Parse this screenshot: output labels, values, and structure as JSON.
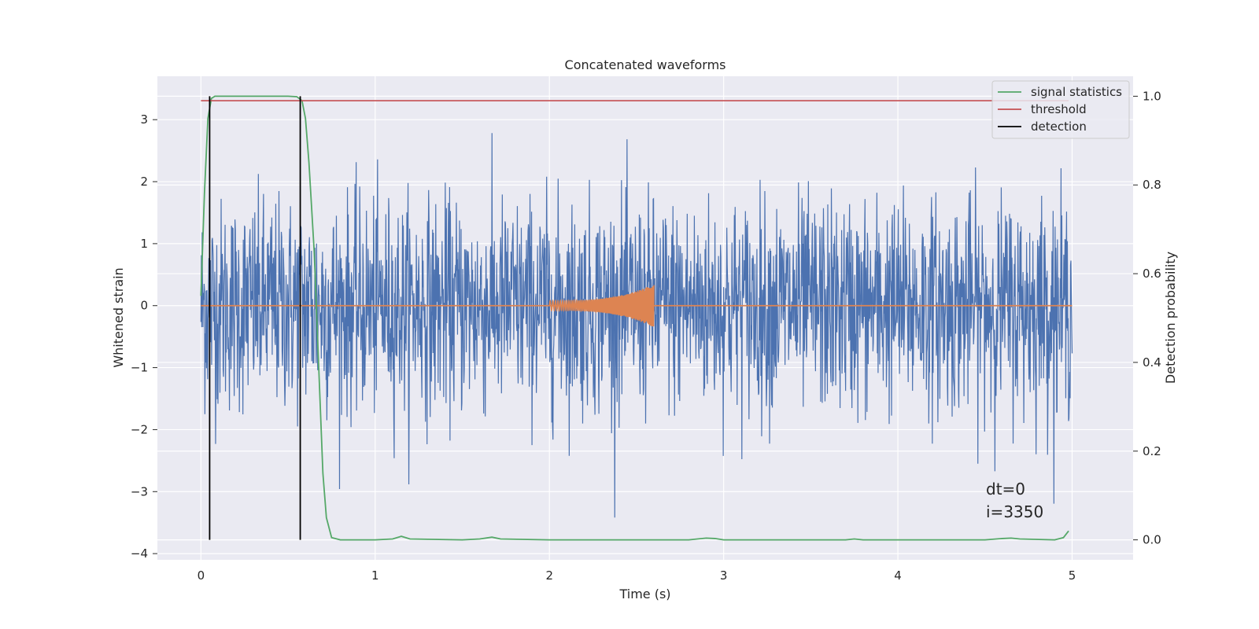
{
  "chart_data": {
    "type": "line",
    "title": "Concatenated waveforms",
    "xlabel": "Time (s)",
    "ylabel": "Whitened strain",
    "y2label": "Detection probability",
    "xlim": [
      -0.25,
      5.35
    ],
    "ylim": [
      -4.1,
      3.7
    ],
    "y2lim": [
      -0.045,
      1.045
    ],
    "xticks": [
      0,
      1,
      2,
      3,
      4,
      5
    ],
    "yticks": [
      -4,
      -3,
      -2,
      -1,
      0,
      1,
      2,
      3
    ],
    "y2ticks": [
      0.0,
      0.2,
      0.4,
      0.6,
      0.8,
      1.0
    ],
    "xtick_labels": [
      "0",
      "1",
      "2",
      "3",
      "4",
      "5"
    ],
    "ytick_labels": [
      "−4",
      "−3",
      "−2",
      "−1",
      "0",
      "1",
      "2",
      "3"
    ],
    "y2tick_labels": [
      "0.0",
      "0.2",
      "0.4",
      "0.6",
      "0.8",
      "1.0"
    ],
    "grid": true,
    "legend_position": "top-right",
    "legend": [
      "signal statistics",
      "threshold",
      "detection"
    ],
    "annotations": [
      "dt=0",
      "i=3350"
    ],
    "colors": {
      "noise": "#4c72b0",
      "chirp": "#dd8452",
      "signal_statistics": "#55a868",
      "threshold": "#c44e52",
      "detection": "#000000",
      "background": "#eaeaf2",
      "grid": "#ffffff"
    },
    "series": [
      {
        "name": "signal statistics",
        "axis": "y2",
        "x": [
          0.0,
          0.02,
          0.04,
          0.06,
          0.08,
          0.1,
          0.2,
          0.3,
          0.4,
          0.5,
          0.55,
          0.58,
          0.6,
          0.62,
          0.65,
          0.68,
          0.7,
          0.72,
          0.75,
          0.8,
          1.0,
          1.1,
          1.15,
          1.2,
          1.5,
          1.6,
          1.67,
          1.72,
          2.0,
          2.5,
          2.8,
          2.9,
          2.95,
          3.0,
          3.5,
          3.7,
          3.75,
          3.8,
          4.0,
          4.5,
          4.6,
          4.65,
          4.7,
          4.9,
          4.95,
          4.98
        ],
        "y": [
          0.55,
          0.78,
          0.95,
          0.995,
          1.0,
          1.0,
          1.0,
          1.0,
          1.0,
          1.0,
          0.999,
          0.99,
          0.95,
          0.85,
          0.65,
          0.35,
          0.15,
          0.05,
          0.005,
          0.0,
          0.0,
          0.002,
          0.008,
          0.002,
          0.0,
          0.002,
          0.006,
          0.002,
          0.0,
          0.0,
          0.0,
          0.004,
          0.003,
          0.0,
          0.0,
          0.0,
          0.002,
          0.0,
          0.0,
          0.0,
          0.003,
          0.004,
          0.002,
          0.0,
          0.005,
          0.02
        ]
      },
      {
        "name": "threshold",
        "axis": "y2",
        "x": [
          0.0,
          4.98
        ],
        "y": [
          0.99,
          0.99
        ]
      },
      {
        "name": "detection",
        "axis": "y2",
        "x_positions": [
          0.05,
          0.57
        ],
        "y_range": [
          0.0,
          1.0
        ]
      },
      {
        "axis": "y",
        "kind": "noise",
        "x_range": [
          0.0,
          5.0
        ],
        "std": 0.85,
        "ylim": [
          -3.8,
          3.45
        ],
        "samples": 2200
      },
      {
        "axis": "y",
        "kind": "chirp",
        "x_range": [
          0.0,
          5.0
        ],
        "chirp_range": [
          2.0,
          2.6
        ],
        "amp_start": 0.08,
        "amp_end": 0.35
      }
    ]
  }
}
